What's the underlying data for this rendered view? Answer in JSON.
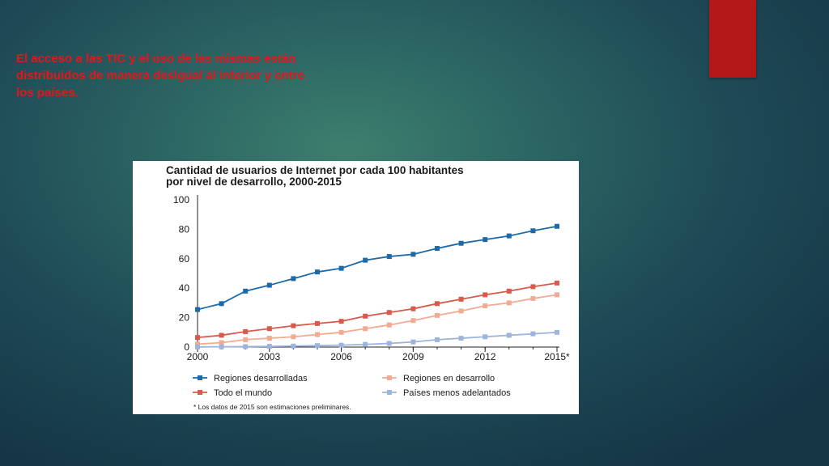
{
  "slide": {
    "text": "El acceso a las TIC y el uso de las mismas están distribuidos de manera desigual al interior y entre los países.",
    "text_color": "#e8141c",
    "accent_color": "#b31718"
  },
  "chart_data": {
    "type": "line",
    "title_line1": "Cantidad de usuarios de Internet por cada 100 habitantes",
    "title_line2": "por nivel de desarrollo, 2000-2015",
    "x": [
      2000,
      2001,
      2002,
      2003,
      2004,
      2005,
      2006,
      2007,
      2008,
      2009,
      2010,
      2011,
      2012,
      2013,
      2014,
      2015
    ],
    "x_ticks": [
      {
        "value": 2000,
        "label": "2000"
      },
      {
        "value": 2003,
        "label": "2003"
      },
      {
        "value": 2006,
        "label": "2006"
      },
      {
        "value": 2009,
        "label": "2009"
      },
      {
        "value": 2012,
        "label": "2012"
      },
      {
        "value": 2015,
        "label": "2015*"
      }
    ],
    "y_ticks": [
      0,
      20,
      40,
      60,
      80,
      100
    ],
    "ylim": [
      0,
      100
    ],
    "xlim": [
      2000,
      2015
    ],
    "series": [
      {
        "name": "Regiones desarrolladas",
        "color": "#1d6aa8",
        "values": [
          25.5,
          29.5,
          38,
          42,
          46.5,
          51,
          53.5,
          59,
          61.5,
          63,
          67,
          70.5,
          73,
          75.5,
          79,
          82
        ]
      },
      {
        "name": "Regiones en desarrollo",
        "color": "#f2ab92",
        "values": [
          2,
          3,
          5,
          6,
          7,
          8.5,
          10,
          12.5,
          15,
          18,
          21.5,
          24.5,
          28,
          30,
          33,
          35.5
        ]
      },
      {
        "name": "Todo el mundo",
        "color": "#d9594a",
        "values": [
          6.5,
          8,
          10.5,
          12.5,
          14.5,
          16,
          17.5,
          21,
          23.5,
          26,
          29.5,
          32.5,
          35.5,
          38,
          41,
          43.5
        ]
      },
      {
        "name": "Países menos adelantados",
        "color": "#9db4dc",
        "values": [
          0.1,
          0.2,
          0.3,
          0.5,
          0.7,
          1,
          1.3,
          1.8,
          2.5,
          3.5,
          5,
          6,
          7,
          8,
          9,
          10
        ]
      }
    ],
    "legend": [
      {
        "label": "Regiones desarrolladas",
        "color": "#1d6aa8"
      },
      {
        "label": "Regiones en desarrollo",
        "color": "#f2ab92"
      },
      {
        "label": "Todo el mundo",
        "color": "#d9594a"
      },
      {
        "label": "Países menos adelantados",
        "color": "#9db4dc"
      }
    ],
    "note": "* Los datos de 2015 son estimaciones preliminares."
  }
}
